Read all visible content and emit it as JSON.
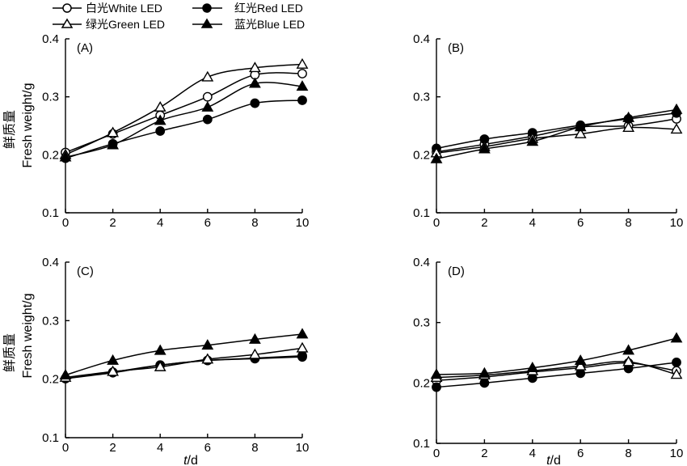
{
  "legend": [
    {
      "label": "白光White LED",
      "marker": "circle-open"
    },
    {
      "label": "红光Red LED",
      "marker": "circle-filled"
    },
    {
      "label": "绿光Green LED",
      "marker": "triangle-open"
    },
    {
      "label": "蓝光Blue LED",
      "marker": "triangle-filled"
    }
  ],
  "ylabel_cn": "鲜质量",
  "ylabel_en": "Fresh weight/g",
  "xlabel_italic": "t",
  "xlabel_rest": "/d",
  "chart_data": [
    {
      "type": "line",
      "panel": "(A)",
      "x": [
        0,
        2,
        4,
        6,
        8,
        10
      ],
      "ylim": [
        0.1,
        0.4
      ],
      "yticks": [
        0.1,
        0.2,
        0.3,
        0.4
      ],
      "xticks": [
        0,
        2,
        4,
        6,
        8,
        10
      ],
      "series": [
        {
          "name": "白光White LED",
          "values": [
            0.204,
            0.236,
            0.268,
            0.3,
            0.338,
            0.34
          ]
        },
        {
          "name": "红光Red LED",
          "values": [
            0.194,
            0.219,
            0.241,
            0.261,
            0.289,
            0.294
          ]
        },
        {
          "name": "绿光Green LED",
          "values": [
            0.2,
            0.238,
            0.282,
            0.334,
            0.35,
            0.356
          ]
        },
        {
          "name": "蓝光Blue LED",
          "values": [
            0.196,
            0.217,
            0.259,
            0.282,
            0.323,
            0.318
          ]
        }
      ]
    },
    {
      "type": "line",
      "panel": "(B)",
      "x": [
        0,
        2,
        4,
        6,
        8,
        10
      ],
      "ylim": [
        0.1,
        0.4
      ],
      "yticks": [
        0.1,
        0.2,
        0.3,
        0.4
      ],
      "xticks": [
        0,
        2,
        4,
        6,
        8,
        10
      ],
      "series": [
        {
          "name": "白光White LED",
          "values": [
            0.205,
            0.218,
            0.232,
            0.248,
            0.25,
            0.262
          ]
        },
        {
          "name": "红光Red LED",
          "values": [
            0.211,
            0.227,
            0.238,
            0.251,
            0.262,
            0.272
          ]
        },
        {
          "name": "绿光Green LED",
          "values": [
            0.203,
            0.214,
            0.228,
            0.236,
            0.247,
            0.244
          ]
        },
        {
          "name": "蓝光Blue LED",
          "values": [
            0.193,
            0.21,
            0.223,
            0.248,
            0.264,
            0.278
          ]
        }
      ]
    },
    {
      "type": "line",
      "panel": "(C)",
      "x": [
        0,
        2,
        4,
        6,
        8,
        10
      ],
      "ylim": [
        0.1,
        0.4
      ],
      "yticks": [
        0.1,
        0.2,
        0.3,
        0.4
      ],
      "xticks": [
        0,
        2,
        4,
        6,
        8,
        10
      ],
      "series": [
        {
          "name": "白光White LED",
          "values": [
            0.201,
            0.212,
            0.224,
            0.232,
            0.236,
            0.24
          ]
        },
        {
          "name": "红光Red LED",
          "values": [
            0.201,
            0.211,
            0.224,
            0.232,
            0.235,
            0.238
          ]
        },
        {
          "name": "绿光Green LED",
          "values": [
            0.203,
            0.213,
            0.221,
            0.234,
            0.242,
            0.253
          ]
        },
        {
          "name": "蓝光Blue LED",
          "values": [
            0.207,
            0.232,
            0.249,
            0.258,
            0.268,
            0.277
          ]
        }
      ]
    },
    {
      "type": "line",
      "panel": "(D)",
      "x": [
        0,
        2,
        4,
        6,
        8,
        10
      ],
      "ylim": [
        0.1,
        0.4
      ],
      "yticks": [
        0.1,
        0.2,
        0.3,
        0.4
      ],
      "xticks": [
        0,
        2,
        4,
        6,
        8,
        10
      ],
      "series": [
        {
          "name": "白光White LED",
          "values": [
            0.204,
            0.21,
            0.218,
            0.225,
            0.233,
            0.22
          ]
        },
        {
          "name": "红光Red LED",
          "values": [
            0.193,
            0.2,
            0.208,
            0.216,
            0.224,
            0.234
          ]
        },
        {
          "name": "绿光Green LED",
          "values": [
            0.209,
            0.213,
            0.22,
            0.228,
            0.235,
            0.214
          ]
        },
        {
          "name": "蓝光Blue LED",
          "values": [
            0.214,
            0.216,
            0.225,
            0.237,
            0.254,
            0.274
          ]
        }
      ]
    }
  ]
}
